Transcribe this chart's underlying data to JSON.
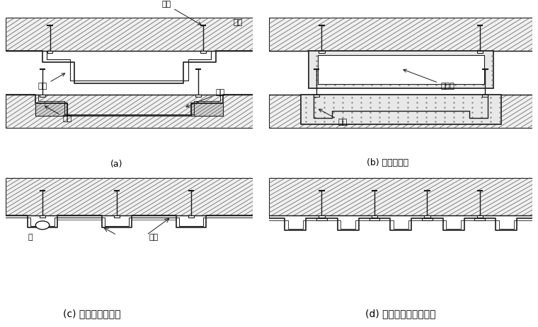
{
  "bg_color": "#ffffff",
  "line_color": "#1a1a1a",
  "label_a": "(a)",
  "label_b": "(b) 使用隔热材",
  "label_c": "(c) 管内可能清扫者",
  "label_d": "(d) 管并列呈面状导水者",
  "annot_maosuan": "锚栓",
  "annot_chengong": "衬砌",
  "annot_guancai": "管材",
  "annot_bancai": "板材",
  "annot_jiaju_a": "夹具",
  "annot_gereci": "隔热材",
  "annot_jiaju_b": "夹具",
  "annot_guan": "管",
  "annot_chucai": "槫材",
  "fontsize_label": 9,
  "fontsize_annot": 8
}
